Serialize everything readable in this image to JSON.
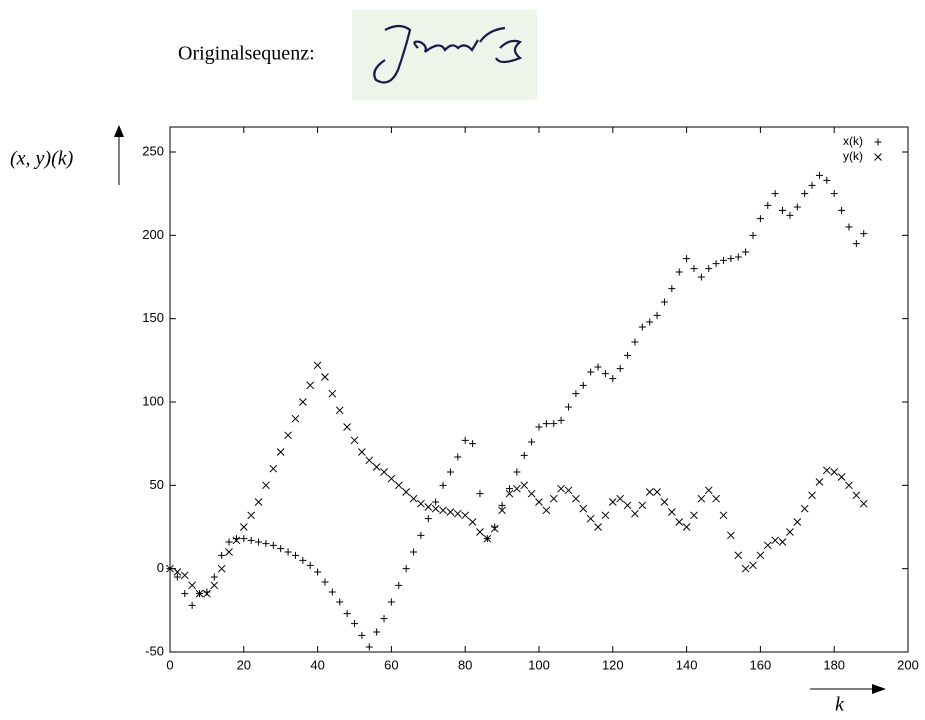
{
  "chart_data": {
    "type": "scatter",
    "title": "Originalsequenz:",
    "x_label": "k",
    "y_label": "(x, y)(k)",
    "x": [
      0,
      2,
      4,
      6,
      8,
      10,
      12,
      14,
      16,
      18,
      20,
      22,
      24,
      26,
      28,
      30,
      32,
      34,
      36,
      38,
      40,
      42,
      44,
      46,
      48,
      50,
      52,
      54,
      56,
      58,
      60,
      62,
      64,
      66,
      68,
      70,
      72,
      74,
      76,
      78,
      80,
      82,
      84,
      86,
      88,
      90,
      92,
      94,
      96,
      98,
      100,
      102,
      104,
      106,
      108,
      110,
      112,
      114,
      116,
      118,
      120,
      122,
      124,
      126,
      128,
      130,
      132,
      134,
      136,
      138,
      140,
      142,
      144,
      146,
      148,
      150,
      152,
      154,
      156,
      158,
      160,
      162,
      164,
      166,
      168,
      170,
      172,
      174,
      176,
      178,
      180,
      182,
      184,
      186,
      188
    ],
    "series": [
      {
        "name": "x(k)",
        "color": "#000000",
        "marker": "plus",
        "values": [
          0,
          -5,
          -15,
          -22,
          -15,
          -14,
          -5,
          8,
          16,
          18,
          18,
          17,
          16,
          15,
          14,
          12,
          10,
          8,
          5,
          2,
          -2,
          -8,
          -14,
          -20,
          -27,
          -33,
          -40,
          -47,
          -38,
          -30,
          -20,
          -10,
          0,
          10,
          20,
          30,
          40,
          50,
          58,
          67,
          77,
          75,
          45,
          18,
          25,
          38,
          48,
          58,
          68,
          76,
          85,
          87,
          87,
          89,
          97,
          105,
          110,
          118,
          121,
          117,
          114,
          120,
          128,
          136,
          145,
          148,
          152,
          160,
          168,
          178,
          186,
          180,
          175,
          180,
          183,
          185,
          186,
          187,
          190,
          200,
          210,
          218,
          225,
          215,
          212,
          217,
          225,
          230,
          236,
          233,
          225,
          215,
          205,
          195,
          201
        ]
      },
      {
        "name": "y(k)",
        "color": "#000000",
        "marker": "cross",
        "values": [
          0,
          -2,
          -4,
          -10,
          -15,
          -15,
          -10,
          0,
          10,
          17,
          25,
          32,
          40,
          50,
          60,
          70,
          80,
          90,
          100,
          110,
          122,
          115,
          105,
          95,
          85,
          77,
          70,
          65,
          61,
          58,
          54,
          50,
          46,
          42,
          39,
          37,
          36,
          35,
          34,
          33,
          32,
          28,
          22,
          18,
          24,
          35,
          45,
          48,
          50,
          45,
          40,
          35,
          42,
          48,
          47,
          42,
          36,
          30,
          25,
          32,
          40,
          42,
          38,
          33,
          38,
          46,
          46,
          40,
          34,
          28,
          25,
          32,
          42,
          47,
          42,
          32,
          20,
          8,
          0,
          2,
          8,
          14,
          17,
          16,
          22,
          28,
          36,
          44,
          52,
          59,
          58,
          55,
          50,
          44,
          39
        ]
      }
    ],
    "xlim": [
      0,
      200
    ],
    "xticks": [
      0,
      20,
      40,
      60,
      80,
      100,
      120,
      140,
      160,
      180,
      200
    ],
    "ylim": [
      -50,
      265
    ],
    "yticks": [
      -50,
      0,
      50,
      100,
      150,
      200,
      250
    ],
    "legend": "top-right",
    "grid": false
  }
}
